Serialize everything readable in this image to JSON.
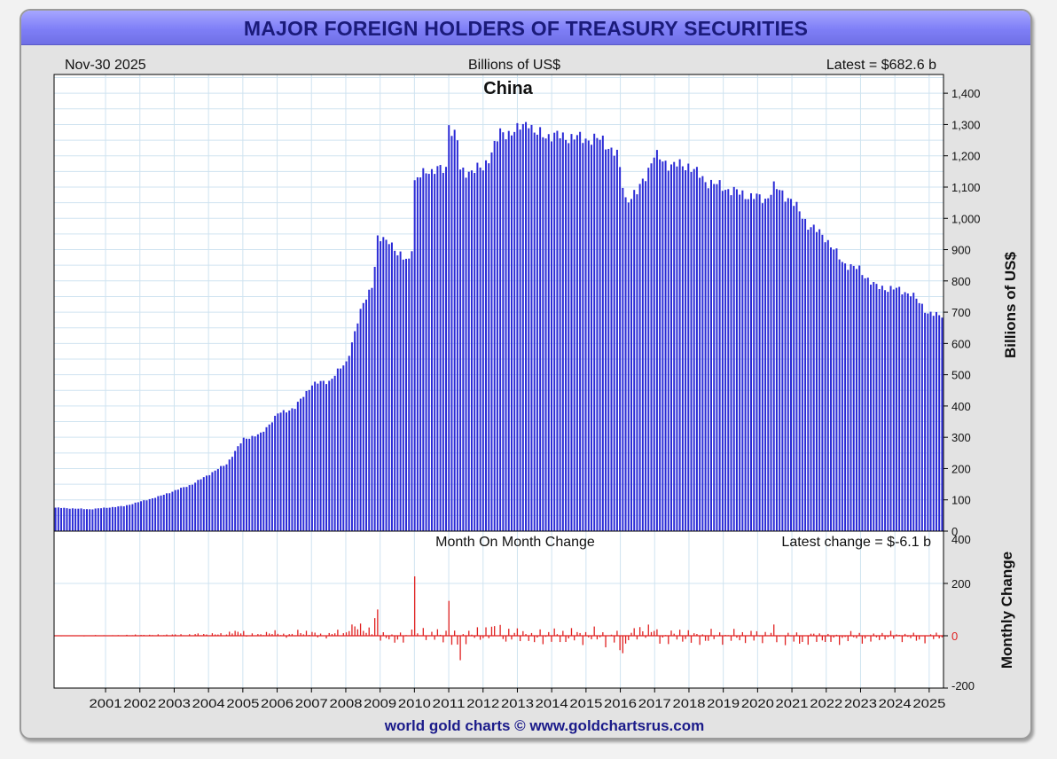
{
  "title": "MAJOR FOREIGN HOLDERS OF TREASURY SECURITIES",
  "header": {
    "date": "Nov-30  2025",
    "units": "Billions of US$",
    "latest": "Latest = $682.6 b"
  },
  "footer": "world gold charts © www.goldchartsrus.com",
  "colors": {
    "bars": "#2b2bd6",
    "change": "#e02020",
    "grid": "#cfe3f0",
    "title_bg": "#8b8bf5",
    "title_text": "#1b1b7a"
  },
  "chart_data": [
    {
      "type": "bar",
      "title": "China",
      "ylabel": "Billions of US$",
      "ylim": [
        0,
        1460
      ],
      "y_ticks": [
        "0",
        "100",
        "200",
        "300",
        "400",
        "500",
        "600",
        "700",
        "800",
        "900",
        "1,000",
        "1,100",
        "1,200",
        "1,300",
        "1,400"
      ],
      "x_ticks": [
        "2001",
        "2002",
        "2003",
        "2004",
        "2005",
        "2006",
        "2007",
        "2008",
        "2009",
        "2010",
        "2011",
        "2012",
        "2013",
        "2014",
        "2015",
        "2016",
        "2017",
        "2018",
        "2019",
        "2020",
        "2021",
        "2022",
        "2023",
        "2024",
        "2025"
      ],
      "x_range": [
        2000.0,
        2025.917
      ],
      "series": [
        {
          "name": "China holdings",
          "start": "2000-01",
          "frequency": "monthly",
          "anchors": [
            [
              2000.0,
              75
            ],
            [
              2001.0,
              70
            ],
            [
              2002.0,
              80
            ],
            [
              2003.0,
              110
            ],
            [
              2004.0,
              150
            ],
            [
              2005.0,
              215
            ],
            [
              2005.5,
              295
            ],
            [
              2006.0,
              310
            ],
            [
              2006.5,
              375
            ],
            [
              2007.0,
              395
            ],
            [
              2007.5,
              470
            ],
            [
              2008.0,
              480
            ],
            [
              2008.5,
              540
            ],
            [
              2009.0,
              730
            ],
            [
              2009.3,
              800
            ],
            [
              2009.4,
              930
            ],
            [
              2009.75,
              935
            ],
            [
              2010.0,
              880
            ],
            [
              2010.4,
              870
            ],
            [
              2010.5,
              1110
            ],
            [
              2010.85,
              1160
            ],
            [
              2011.0,
              1150
            ],
            [
              2011.42,
              1160
            ],
            [
              2011.5,
              1310
            ],
            [
              2011.58,
              1280
            ],
            [
              2011.75,
              1250
            ],
            [
              2011.83,
              1150
            ],
            [
              2012.0,
              1150
            ],
            [
              2012.5,
              1160
            ],
            [
              2013.0,
              1270
            ],
            [
              2013.5,
              1280
            ],
            [
              2013.83,
              1315
            ],
            [
              2014.0,
              1270
            ],
            [
              2015.0,
              1260
            ],
            [
              2016.0,
              1250
            ],
            [
              2016.42,
              1200
            ],
            [
              2016.67,
              1060
            ],
            [
              2017.0,
              1080
            ],
            [
              2017.5,
              1200
            ],
            [
              2018.0,
              1170
            ],
            [
              2018.5,
              1170
            ],
            [
              2019.0,
              1120
            ],
            [
              2020.0,
              1080
            ],
            [
              2020.75,
              1060
            ],
            [
              2021.0,
              1100
            ],
            [
              2021.5,
              1060
            ],
            [
              2022.0,
              980
            ],
            [
              2022.5,
              940
            ],
            [
              2023.0,
              860
            ],
            [
              2023.5,
              835
            ],
            [
              2024.0,
              780
            ],
            [
              2024.5,
              775
            ],
            [
              2025.0,
              760
            ],
            [
              2025.5,
              700
            ],
            [
              2025.917,
              682.6
            ]
          ]
        }
      ]
    },
    {
      "type": "bar",
      "title": "Month On Month Change",
      "ylabel": "Monthly Change",
      "ylim": [
        -200,
        400
      ],
      "y_ticks": [
        "-200",
        "0",
        "200",
        "400"
      ],
      "latest_label": "Latest change = $-6.1 b",
      "latest_value": -6.1,
      "derived_from": "month-over-month difference of China holdings"
    }
  ]
}
